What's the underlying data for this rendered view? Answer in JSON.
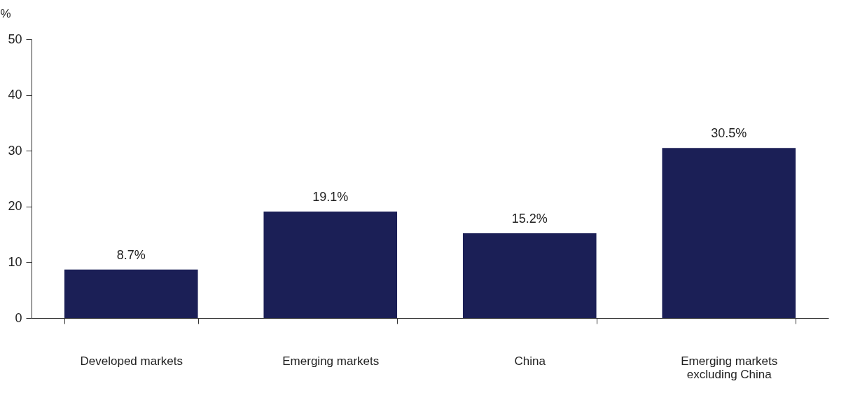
{
  "chart_data": {
    "type": "bar",
    "ylabel": "%",
    "categories": [
      "Developed markets",
      "Emerging markets",
      "China",
      "Emerging markets excluding China"
    ],
    "values": [
      8.7,
      19.1,
      15.2,
      30.5
    ],
    "color": "#1b1f56",
    "value_labels": [
      "8.7%",
      "19.1%",
      "15.2%",
      "30.5%"
    ],
    "ylim": [
      0,
      50
    ],
    "yticks": [
      0,
      10,
      20,
      30,
      40,
      50
    ],
    "grid": false
  }
}
